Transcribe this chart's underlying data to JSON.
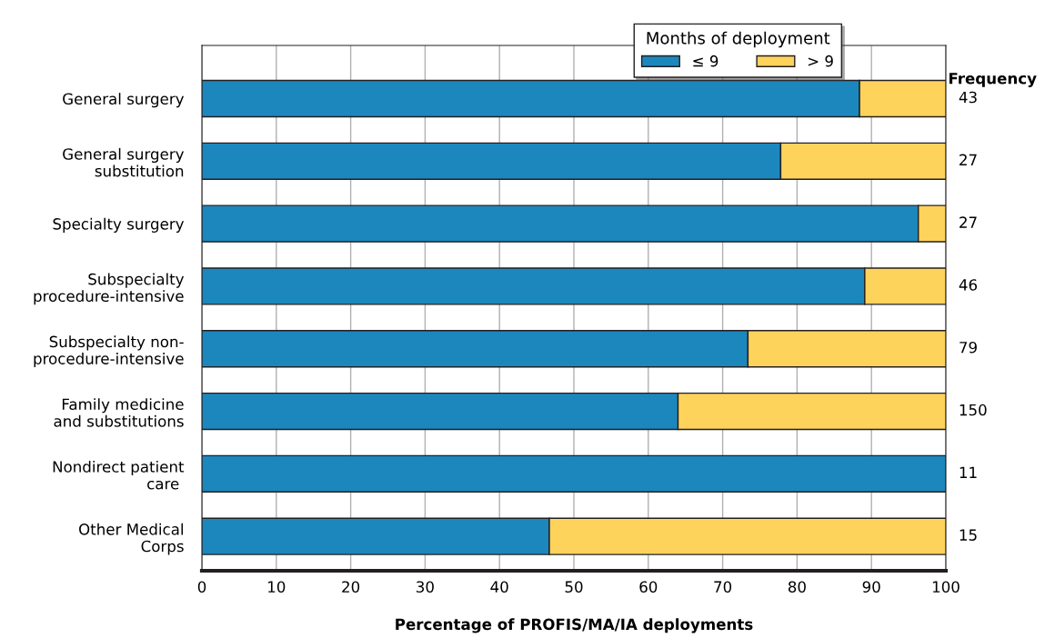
{
  "chart_data": {
    "type": "bar",
    "orientation": "horizontal",
    "stacked": true,
    "xlabel": "Percentage of PROFIS/MA/IA deployments",
    "legend_title": "Months of deployment",
    "categories": [
      "General surgery",
      "General surgery\nsubstitution",
      "Specialty surgery",
      "Subspecialty\nprocedure-intensive",
      "Subspecialty non-\nprocedure-intensive",
      "Family medicine\nand substitutions",
      "Nondirect patient\ncare ",
      "Other Medical\nCorps"
    ],
    "series": [
      {
        "name": "≤ 9",
        "color": "#1c87bd",
        "values": [
          88.4,
          77.8,
          96.3,
          89.1,
          73.4,
          64.0,
          100,
          46.7
        ]
      },
      {
        "name": "> 9",
        "color": "#fdd35c",
        "values": [
          11.6,
          22.2,
          3.7,
          10.9,
          26.6,
          36.0,
          null,
          53.3
        ]
      }
    ],
    "xlim": [
      0,
      100
    ],
    "xticks": [
      0,
      10,
      20,
      30,
      40,
      50,
      60,
      70,
      80,
      90,
      100
    ],
    "grid": "x",
    "legend": "top right",
    "annotations": [
      "Frequency",
      "43",
      "27",
      "27",
      "46",
      "79",
      "150",
      "11",
      "15"
    ]
  }
}
